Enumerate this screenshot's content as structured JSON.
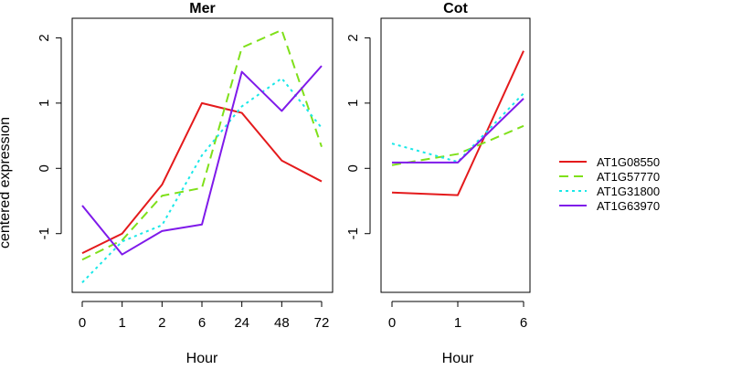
{
  "chart_data": {
    "type": "line",
    "ylabel": "centered expression",
    "legend": {
      "placement": "right",
      "entries": [
        {
          "name": "AT1G08550",
          "color": "#e41a1c",
          "dash": "solid"
        },
        {
          "name": "AT1G57770",
          "color": "#7fe01a",
          "dash": "dashed"
        },
        {
          "name": "AT1G31800",
          "color": "#1ae8e8",
          "dash": "dotted"
        },
        {
          "name": "AT1G63970",
          "color": "#7f1aea",
          "dash": "solid"
        }
      ]
    },
    "panels": [
      {
        "title": "Mer",
        "xlabel": "Hour",
        "categories": [
          "0",
          "1",
          "2",
          "6",
          "24",
          "48",
          "72"
        ],
        "yticks": [
          "-1",
          "0",
          "1",
          "2"
        ],
        "ylim": [
          -1.9,
          2.3
        ],
        "series": [
          {
            "name": "AT1G08550",
            "values": [
              -1.3,
              -1.0,
              -0.25,
              1.0,
              0.85,
              0.12,
              -0.2
            ]
          },
          {
            "name": "AT1G57770",
            "values": [
              -1.4,
              -1.1,
              -0.42,
              -0.3,
              1.85,
              2.12,
              0.33
            ]
          },
          {
            "name": "AT1G31800",
            "values": [
              -1.75,
              -1.12,
              -0.87,
              0.2,
              0.95,
              1.38,
              0.62
            ]
          },
          {
            "name": "AT1G63970",
            "values": [
              -0.57,
              -1.32,
              -0.96,
              -0.86,
              1.48,
              0.88,
              1.57
            ]
          }
        ]
      },
      {
        "title": "Cot",
        "xlabel": "Hour",
        "categories": [
          "0",
          "1",
          "6"
        ],
        "yticks": [
          "-1",
          "0",
          "1",
          "2"
        ],
        "ylim": [
          -1.9,
          2.3
        ],
        "series": [
          {
            "name": "AT1G08550",
            "values": [
              -0.37,
              -0.41,
              1.8
            ]
          },
          {
            "name": "AT1G57770",
            "values": [
              0.05,
              0.22,
              0.65
            ]
          },
          {
            "name": "AT1G31800",
            "values": [
              0.38,
              0.1,
              1.15
            ]
          },
          {
            "name": "AT1G63970",
            "values": [
              0.09,
              0.09,
              1.07
            ]
          }
        ]
      }
    ]
  }
}
